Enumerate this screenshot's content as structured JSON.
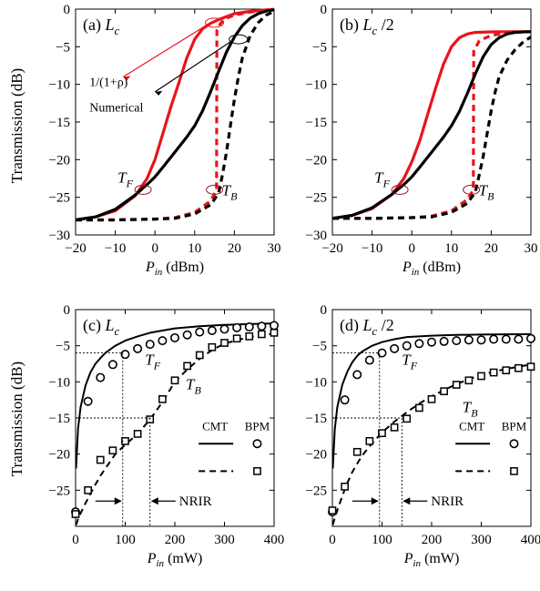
{
  "ylabel": "Transmission (dB)",
  "legend": {
    "cmt": "CMT",
    "bpm": "BPM"
  },
  "colors": {
    "black": "#000000",
    "red": "#e8141b"
  },
  "chart_data": [
    {
      "type": "line",
      "panel": "(a)",
      "title": "L",
      "title_sub": "c",
      "title_suffix": "",
      "xlabel": "P",
      "xlabel_sub": "in",
      "xlabel_unit": " (dBm)",
      "xlim": [
        -20,
        30
      ],
      "ylim": [
        -30,
        0
      ],
      "xticks": [
        -20,
        -10,
        0,
        10,
        20,
        30
      ],
      "yticks": [
        0,
        -5,
        -10,
        -15,
        -20,
        -25,
        -30
      ],
      "annotations": {
        "analytic": "1/(1+ρ)",
        "numerical": "Numerical",
        "tf": "T",
        "tf_sub": "F",
        "tb": "T",
        "tb_sub": "B"
      },
      "series": [
        {
          "name": "1/(1+ρ) forward",
          "color": "#e8141b",
          "dash": false,
          "x": [
            -20,
            -15,
            -10,
            -5,
            -2,
            0,
            2,
            4,
            6,
            8,
            10,
            12,
            14,
            16,
            18,
            20,
            24,
            28,
            30
          ],
          "y": [
            -28,
            -27.6,
            -26.8,
            -24.8,
            -22.5,
            -20,
            -16.5,
            -13,
            -9.8,
            -6.5,
            -4,
            -2.6,
            -1.9,
            -1.4,
            -1,
            -0.6,
            -0.3,
            -0.1,
            -0.05
          ]
        },
        {
          "name": "1/(1+ρ) backward",
          "color": "#e8141b",
          "dash": true,
          "x": [
            -20,
            -10,
            0,
            5,
            10,
            14,
            15.5,
            15.6,
            16.5,
            18,
            20,
            24,
            28,
            30
          ],
          "y": [
            -28,
            -28,
            -27.9,
            -27.7,
            -27,
            -25.5,
            -24,
            -2.8,
            -1.9,
            -1.2,
            -0.8,
            -0.4,
            -0.1,
            -0.05
          ]
        },
        {
          "name": "Numerical forward",
          "color": "#000000",
          "dash": false,
          "x": [
            -20,
            -15,
            -10,
            -5,
            -2,
            0,
            2,
            5,
            8,
            10,
            12,
            14,
            16,
            18,
            20,
            22,
            24,
            26,
            28,
            30
          ],
          "y": [
            -28,
            -27.6,
            -26.6,
            -24.7,
            -23.3,
            -22.3,
            -21,
            -19,
            -17,
            -15.5,
            -13.5,
            -11,
            -8.3,
            -5.7,
            -3.7,
            -2.2,
            -1.2,
            -0.6,
            -0.25,
            -0.1
          ]
        },
        {
          "name": "Numerical backward",
          "color": "#000000",
          "dash": true,
          "x": [
            -20,
            -10,
            0,
            5,
            10,
            14,
            16,
            17,
            18,
            19,
            20,
            21,
            22,
            24,
            26,
            28,
            30
          ],
          "y": [
            -28,
            -28,
            -27.9,
            -27.8,
            -27.2,
            -26,
            -24.5,
            -22,
            -19,
            -15.5,
            -12,
            -9,
            -6.5,
            -3.5,
            -1.8,
            -0.8,
            -0.3
          ]
        }
      ]
    },
    {
      "type": "line",
      "panel": "(b)",
      "title": "L",
      "title_sub": "c",
      "title_suffix": " /2",
      "xlabel": "P",
      "xlabel_sub": "in",
      "xlabel_unit": " (dBm)",
      "xlim": [
        -20,
        30
      ],
      "ylim": [
        -30,
        0
      ],
      "xticks": [
        -20,
        -10,
        0,
        10,
        20,
        30
      ],
      "yticks": [
        0,
        -5,
        -10,
        -15,
        -20,
        -25,
        -30
      ],
      "annotations": {
        "tf": "T",
        "tf_sub": "F",
        "tb": "T",
        "tb_sub": "B"
      },
      "series": [
        {
          "name": "1/(1+ρ) forward",
          "color": "#e8141b",
          "dash": false,
          "x": [
            -20,
            -15,
            -10,
            -5,
            -2,
            0,
            2,
            4,
            6,
            8,
            10,
            12,
            14,
            16,
            20,
            25,
            30
          ],
          "y": [
            -27.8,
            -27.4,
            -26.5,
            -24.6,
            -22.5,
            -20.3,
            -17.5,
            -14,
            -10.5,
            -7.3,
            -5,
            -3.8,
            -3.3,
            -3.1,
            -3.03,
            -3,
            -3
          ]
        },
        {
          "name": "1/(1+ρ) backward",
          "color": "#e8141b",
          "dash": true,
          "x": [
            -20,
            -10,
            0,
            5,
            10,
            14,
            15.5,
            15.6,
            17,
            20,
            25,
            30
          ],
          "y": [
            -27.8,
            -27.8,
            -27.7,
            -27.5,
            -26.8,
            -25.3,
            -24,
            -5.6,
            -4.2,
            -3.5,
            -3.1,
            -3
          ]
        },
        {
          "name": "Numerical forward",
          "color": "#000000",
          "dash": false,
          "x": [
            -20,
            -15,
            -10,
            -5,
            -2,
            0,
            2,
            5,
            8,
            10,
            12,
            14,
            16,
            18,
            20,
            22,
            24,
            26,
            28,
            30
          ],
          "y": [
            -27.8,
            -27.4,
            -26.4,
            -24.6,
            -23.3,
            -22.3,
            -21,
            -19,
            -17,
            -15.5,
            -13.6,
            -11.2,
            -8.6,
            -6.3,
            -4.7,
            -3.8,
            -3.3,
            -3.1,
            -3.03,
            -3
          ]
        },
        {
          "name": "Numerical backward",
          "color": "#000000",
          "dash": true,
          "x": [
            -20,
            -10,
            0,
            5,
            10,
            14,
            16,
            17,
            18,
            19,
            20,
            21,
            22,
            24,
            26,
            28,
            30
          ],
          "y": [
            -27.8,
            -27.8,
            -27.7,
            -27.6,
            -27,
            -25.8,
            -24.3,
            -22,
            -19.5,
            -16.5,
            -13.5,
            -11,
            -9,
            -6.8,
            -5.4,
            -4.4,
            -3.7
          ]
        }
      ]
    },
    {
      "type": "line",
      "panel": "(c)",
      "title": "L",
      "title_sub": "c",
      "title_suffix": "",
      "xlabel": "P",
      "xlabel_sub": "in",
      "xlabel_unit": " (mW)",
      "xlim": [
        0,
        400
      ],
      "ylim": [
        -30,
        0
      ],
      "xticks": [
        0,
        100,
        200,
        300,
        400
      ],
      "yticks": [
        0,
        -5,
        -10,
        -15,
        -20,
        -25
      ],
      "annotations": {
        "tf": "T",
        "tf_sub": "F",
        "tb": "T",
        "tb_sub": "B",
        "nrir": "NRIR",
        "nrir_range": [
          95,
          150
        ],
        "tf_level": -6,
        "tb_level": -15
      },
      "series": [
        {
          "name": "CMT forward",
          "color": "#000000",
          "dash": false,
          "x": [
            1,
            5,
            10,
            20,
            30,
            40,
            50,
            60,
            80,
            100,
            125,
            150,
            175,
            200,
            250,
            300,
            350,
            400
          ],
          "y": [
            -22,
            -16.5,
            -13.5,
            -10.5,
            -8.7,
            -7.5,
            -6.7,
            -6,
            -5,
            -4.3,
            -3.7,
            -3.2,
            -2.9,
            -2.6,
            -2.3,
            -2.1,
            -2,
            -1.9
          ]
        },
        {
          "name": "CMT backward",
          "color": "#000000",
          "dash": true,
          "x": [
            1,
            5,
            10,
            20,
            30,
            40,
            50,
            60,
            80,
            100,
            125,
            150,
            175,
            200,
            225,
            250,
            275,
            300,
            350,
            400
          ],
          "y": [
            -29.8,
            -29,
            -28.2,
            -26.8,
            -25.5,
            -24.2,
            -23,
            -22,
            -20,
            -18.7,
            -17.2,
            -15.2,
            -12.8,
            -10,
            -8.3,
            -6.8,
            -5.6,
            -4.7,
            -3.8,
            -3.3
          ]
        },
        {
          "name": "BPM forward",
          "color": "#000000",
          "marker": "circle",
          "x": [
            0,
            25,
            50,
            75,
            100,
            125,
            150,
            175,
            200,
            225,
            250,
            275,
            300,
            325,
            350,
            375,
            400
          ],
          "y": [
            -28,
            -12.7,
            -9.4,
            -7.6,
            -6.2,
            -5.4,
            -4.8,
            -4.3,
            -3.9,
            -3.5,
            -3.1,
            -2.9,
            -2.7,
            -2.5,
            -2.4,
            -2.3,
            -2.2
          ]
        },
        {
          "name": "BPM backward",
          "color": "#000000",
          "marker": "square",
          "x": [
            0,
            25,
            50,
            75,
            100,
            125,
            150,
            175,
            200,
            225,
            250,
            275,
            300,
            325,
            350,
            375,
            400
          ],
          "y": [
            -28.3,
            -25,
            -20.8,
            -19.5,
            -18.2,
            -17.2,
            -15.2,
            -12.4,
            -9.8,
            -7.8,
            -6.3,
            -5.2,
            -4.6,
            -4,
            -3.7,
            -3.4,
            -3.2
          ]
        }
      ]
    },
    {
      "type": "line",
      "panel": "(d)",
      "title": "L",
      "title_sub": "c",
      "title_suffix": " /2",
      "xlabel": "P",
      "xlabel_sub": "in",
      "xlabel_unit": " (mW)",
      "xlim": [
        0,
        400
      ],
      "ylim": [
        -30,
        0
      ],
      "xticks": [
        0,
        100,
        200,
        300,
        400
      ],
      "yticks": [
        0,
        -5,
        -10,
        -15,
        -20,
        -25
      ],
      "annotations": {
        "tf": "T",
        "tf_sub": "F",
        "tb": "T",
        "tb_sub": "B",
        "nrir": "NRIR",
        "nrir_range": [
          95,
          140
        ],
        "tf_level": -6,
        "tb_level": -15
      },
      "series": [
        {
          "name": "CMT forward",
          "color": "#000000",
          "dash": false,
          "x": [
            1,
            5,
            10,
            20,
            30,
            40,
            50,
            60,
            80,
            100,
            125,
            150,
            200,
            250,
            300,
            350,
            400
          ],
          "y": [
            -22,
            -16.5,
            -13.5,
            -10.4,
            -8.6,
            -7.3,
            -6.4,
            -5.8,
            -5,
            -4.5,
            -4.1,
            -3.8,
            -3.6,
            -3.5,
            -3.45,
            -3.42,
            -3.4
          ]
        },
        {
          "name": "CMT backward",
          "color": "#000000",
          "dash": true,
          "x": [
            1,
            5,
            10,
            20,
            30,
            40,
            50,
            60,
            80,
            100,
            125,
            150,
            175,
            200,
            250,
            300,
            350,
            400
          ],
          "y": [
            -29.8,
            -28.8,
            -27.8,
            -25.8,
            -24,
            -22.5,
            -21.3,
            -20.2,
            -18.5,
            -17,
            -15.5,
            -14.2,
            -13,
            -12,
            -10.3,
            -9,
            -8.2,
            -7.6
          ]
        },
        {
          "name": "BPM forward",
          "color": "#000000",
          "marker": "circle",
          "x": [
            0,
            25,
            50,
            75,
            100,
            125,
            150,
            175,
            200,
            225,
            250,
            275,
            300,
            325,
            350,
            375,
            400
          ],
          "y": [
            -28,
            -12.5,
            -9,
            -7,
            -6,
            -5.4,
            -5,
            -4.7,
            -4.5,
            -4.4,
            -4.3,
            -4.2,
            -4.2,
            -4.1,
            -4.1,
            -4.1,
            -4
          ]
        },
        {
          "name": "BPM backward",
          "color": "#000000",
          "marker": "square",
          "x": [
            0,
            25,
            50,
            75,
            100,
            125,
            150,
            175,
            200,
            225,
            250,
            275,
            300,
            325,
            350,
            375,
            400
          ],
          "y": [
            -27.8,
            -24.5,
            -19.7,
            -18.2,
            -17.1,
            -16.3,
            -15.1,
            -13.6,
            -12.4,
            -11.3,
            -10.4,
            -9.8,
            -9.2,
            -8.7,
            -8.4,
            -8.1,
            -7.9
          ]
        }
      ]
    }
  ]
}
